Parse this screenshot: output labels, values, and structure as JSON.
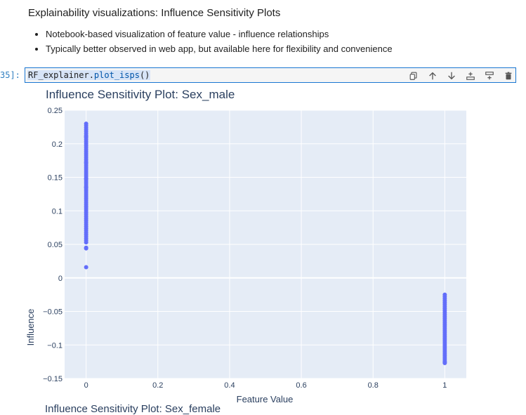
{
  "markdown": {
    "heading": "Explainability visualizations: Influence Sensitivity Plots",
    "bullets": [
      "Notebook-based visualization of feature value - influence relationships",
      "Typically better observed in web app, but available here for flexibility and convenience"
    ]
  },
  "code_cell": {
    "prompt": "35]:",
    "object": "RF_explainer.",
    "method": "plot_isps",
    "call": "()"
  },
  "toolbar": {
    "icons": [
      "duplicate-icon",
      "move-up-icon",
      "move-down-icon",
      "insert-above-icon",
      "insert-below-icon",
      "delete-icon"
    ]
  },
  "chart_data": {
    "type": "scatter",
    "title": "Influence Sensitivity Plot: Sex_male",
    "xlabel": "Feature Value",
    "ylabel": "Influence",
    "xlim": [
      -0.06,
      1.06
    ],
    "ylim": [
      -0.15,
      0.25
    ],
    "x_ticks": [
      0,
      0.2,
      0.4,
      0.6,
      0.8,
      1
    ],
    "x_tick_labels": [
      "0",
      "0.2",
      "0.4",
      "0.6",
      "0.8",
      "1"
    ],
    "y_ticks": [
      -0.15,
      -0.1,
      -0.05,
      0,
      0.05,
      0.1,
      0.15,
      0.2,
      0.25
    ],
    "y_tick_labels": [
      "−0.15",
      "−0.1",
      "−0.05",
      "0",
      "0.05",
      "0.1",
      "0.15",
      "0.2",
      "0.25"
    ],
    "grid": true,
    "marker_color": "#636efa",
    "plot_bg": "#e5ecf6",
    "series": [
      {
        "x": [
          0,
          0,
          0,
          0,
          0,
          0,
          0,
          0,
          0,
          0,
          0,
          0,
          0,
          0,
          0,
          0,
          0,
          0,
          0,
          0,
          0,
          0,
          0,
          0,
          0,
          0,
          0,
          0,
          0,
          0,
          0,
          0,
          0,
          0,
          0,
          0,
          0,
          0,
          0,
          0,
          0,
          0,
          0,
          0,
          0,
          0,
          0,
          0,
          0,
          0,
          0,
          0,
          0,
          0,
          0,
          0,
          0,
          0,
          0,
          0,
          0,
          0,
          0,
          0,
          0,
          0,
          0
        ],
        "y": [
          0.23,
          0.227,
          0.224,
          0.221,
          0.218,
          0.215,
          0.212,
          0.209,
          0.206,
          0.203,
          0.2,
          0.197,
          0.194,
          0.191,
          0.188,
          0.185,
          0.182,
          0.179,
          0.176,
          0.173,
          0.17,
          0.167,
          0.164,
          0.161,
          0.158,
          0.155,
          0.152,
          0.149,
          0.146,
          0.143,
          0.14,
          0.137,
          0.134,
          0.131,
          0.128,
          0.125,
          0.122,
          0.119,
          0.116,
          0.113,
          0.11,
          0.107,
          0.104,
          0.101,
          0.098,
          0.095,
          0.092,
          0.089,
          0.086,
          0.083,
          0.08,
          0.077,
          0.074,
          0.071,
          0.068,
          0.065,
          0.062,
          0.059,
          0.056,
          0.053,
          0.045,
          0.044,
          0.016,
          0.135,
          0.148,
          0.172,
          0.211
        ]
      },
      {
        "x": [
          1,
          1,
          1,
          1,
          1,
          1,
          1,
          1,
          1,
          1,
          1,
          1,
          1,
          1,
          1,
          1,
          1,
          1,
          1,
          1,
          1,
          1,
          1,
          1,
          1,
          1,
          1,
          1,
          1,
          1,
          1,
          1,
          1,
          1,
          1,
          1
        ],
        "y": [
          -0.025,
          -0.028,
          -0.031,
          -0.034,
          -0.037,
          -0.04,
          -0.043,
          -0.046,
          -0.049,
          -0.052,
          -0.055,
          -0.058,
          -0.061,
          -0.064,
          -0.067,
          -0.07,
          -0.073,
          -0.076,
          -0.079,
          -0.082,
          -0.085,
          -0.088,
          -0.091,
          -0.094,
          -0.097,
          -0.1,
          -0.103,
          -0.106,
          -0.109,
          -0.112,
          -0.115,
          -0.118,
          -0.121,
          -0.124,
          -0.126,
          -0.127
        ]
      }
    ]
  },
  "next_output_peek": "Influence Sensitivity Plot: Sex_female"
}
